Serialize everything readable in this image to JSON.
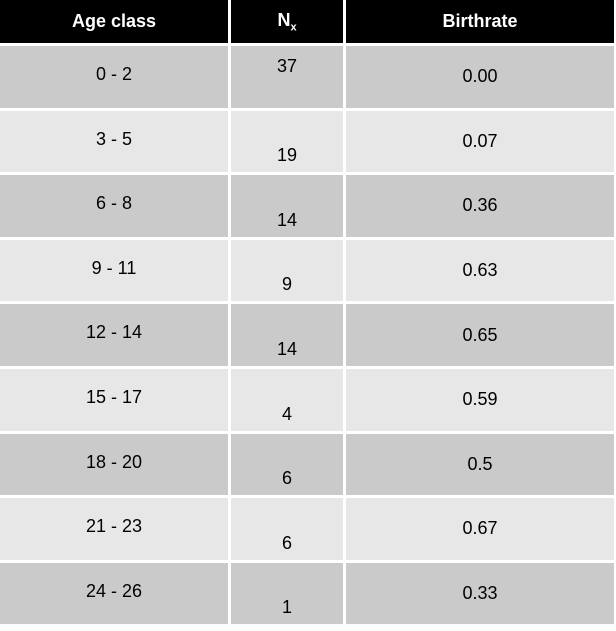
{
  "table": {
    "headers": {
      "age_class": "Age class",
      "nx_main": "N",
      "nx_sub": "x",
      "birthrate": "Birthrate"
    },
    "rows": [
      {
        "age": "0 - 2",
        "nx": "37",
        "birth": "0.00"
      },
      {
        "age": "3 - 5",
        "nx": "19",
        "birth": "0.07"
      },
      {
        "age": "6 - 8",
        "nx": "14",
        "birth": "0.36"
      },
      {
        "age": "9 - 11",
        "nx": "9",
        "birth": "0.63"
      },
      {
        "age": "12 - 14",
        "nx": "14",
        "birth": "0.65"
      },
      {
        "age": "15 - 17",
        "nx": "4",
        "birth": "0.59"
      },
      {
        "age": "18 - 20",
        "nx": "6",
        "birth": "0.5"
      },
      {
        "age": "21 - 23",
        "nx": "6",
        "birth": "0.67"
      },
      {
        "age": "24 - 26",
        "nx": "1",
        "birth": "0.33"
      }
    ],
    "colors": {
      "header_bg": "#000000",
      "header_text": "#ffffff",
      "row_dark": "#cacaca",
      "row_light": "#e7e7e7"
    }
  }
}
